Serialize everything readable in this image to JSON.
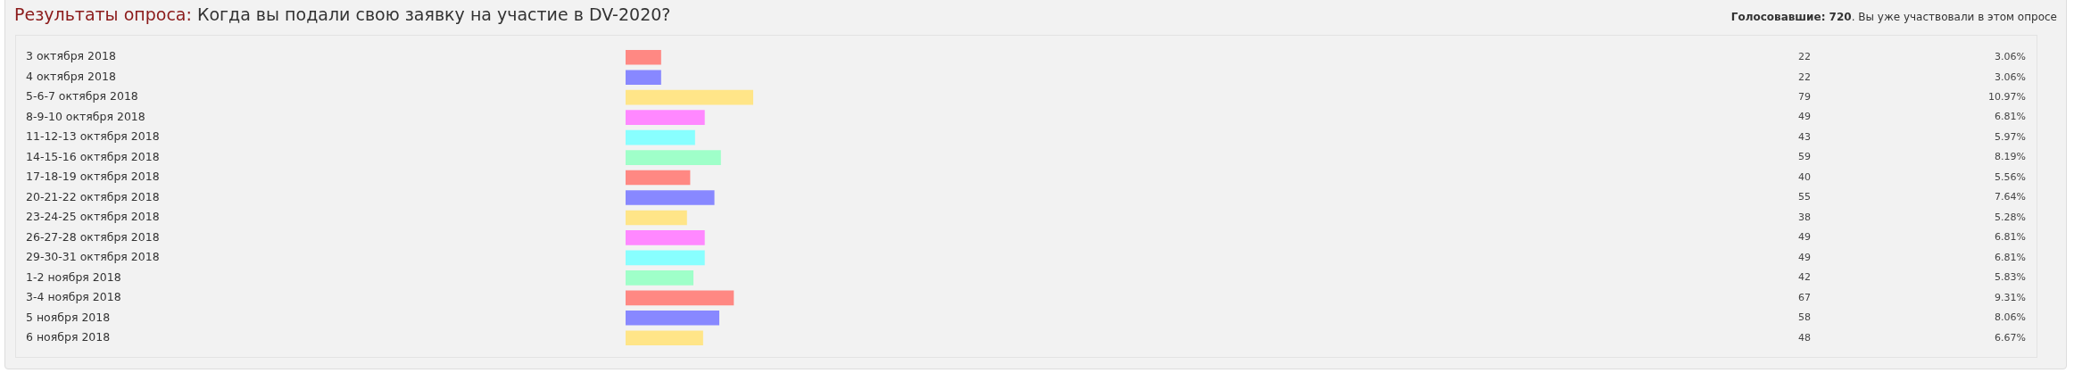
{
  "chart_data": {
    "type": "bar",
    "orientation": "horizontal",
    "title": "Результаты опроса: Когда вы подали свою заявку на участие в DV-2020?",
    "subtitle": "Голосовавшие: 720. Вы уже участвовали в этом опросе",
    "categories": [
      "3 октября 2018",
      "4 октября 2018",
      "5-6-7 октября 2018",
      "8-9-10 октября 2018",
      "11-12-13 октября 2018",
      "14-15-16 октября 2018",
      "17-18-19 октября 2018",
      "20-21-22 октября 2018",
      "23-24-25 октября 2018",
      "26-27-28 октября 2018",
      "29-30-31 октября 2018",
      "1-2 ноября 2018",
      "3-4 ноября 2018",
      "5 ноября 2018",
      "6 ноября 2018"
    ],
    "values": [
      22,
      22,
      79,
      49,
      43,
      59,
      40,
      55,
      38,
      49,
      49,
      42,
      67,
      58,
      48
    ],
    "colors": [
      "#ff8883",
      "#8888ff",
      "#ffe588",
      "#ff88ff",
      "#88ffff",
      "#9fffc9",
      "#ff8883",
      "#8888ff",
      "#ffe588",
      "#ff88ff",
      "#88ffff",
      "#9fffc9",
      "#ff8883",
      "#8888ff",
      "#ffe588"
    ],
    "data_labels": true,
    "annotations": [
      "3.06%",
      "3.06%",
      "10.97%",
      "6.81%",
      "5.97%",
      "8.19%",
      "5.56%",
      "7.64%",
      "5.28%",
      "6.81%",
      "6.81%",
      "5.83%",
      "9.31%",
      "8.06%",
      "6.67%"
    ]
  }
}
